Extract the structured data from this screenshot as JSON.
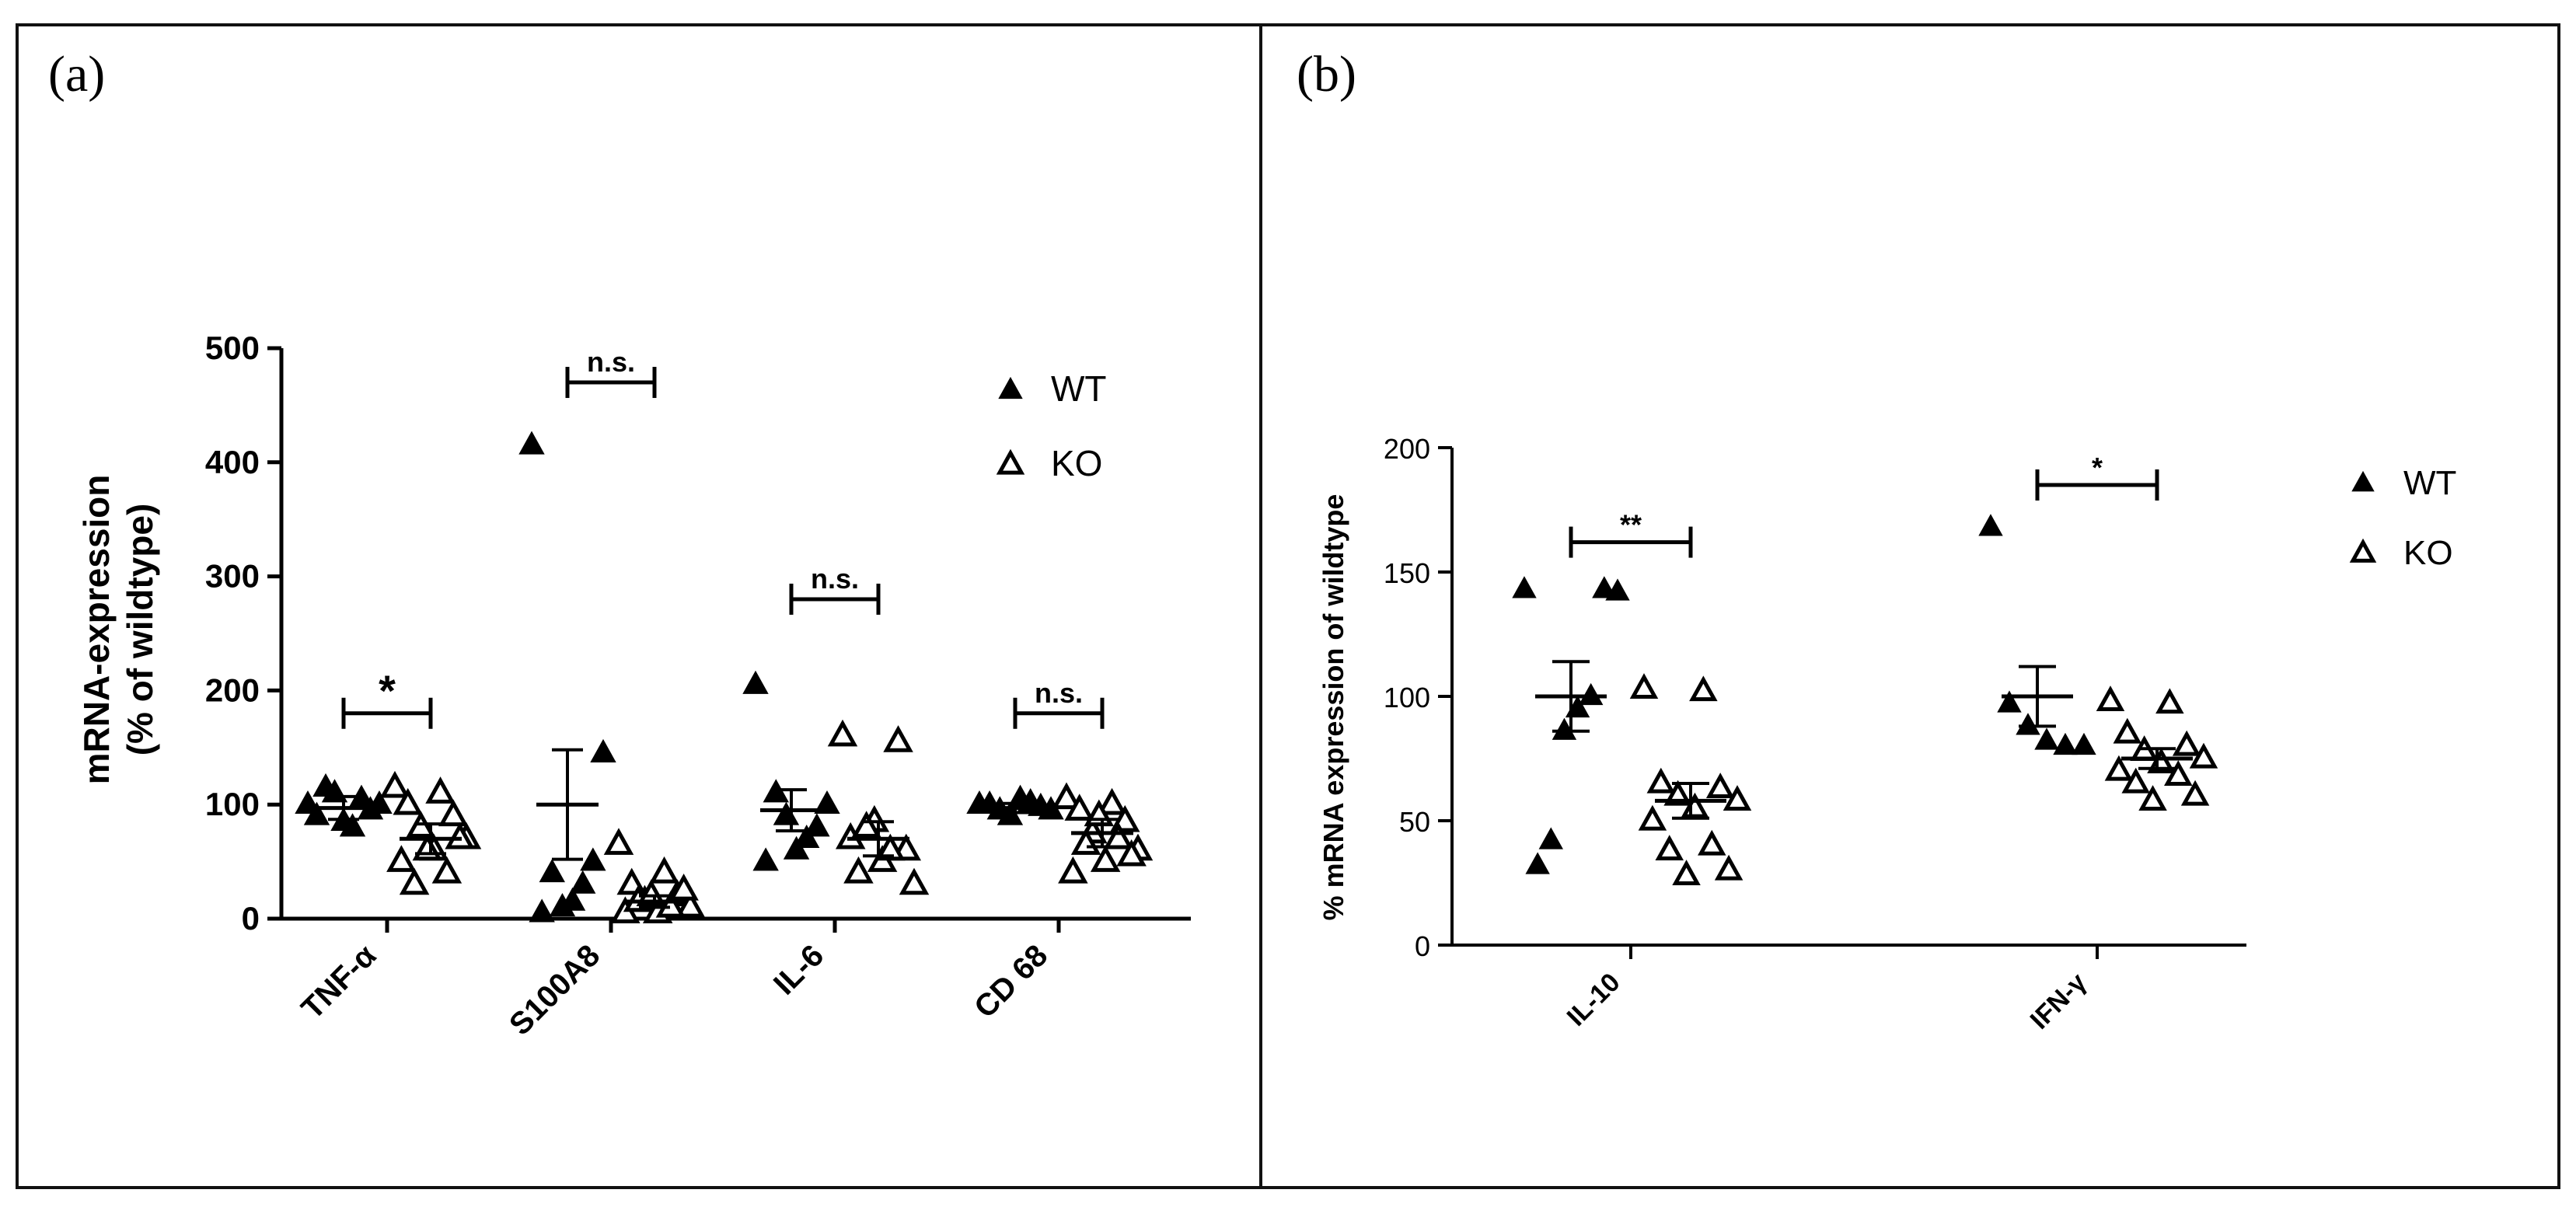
{
  "chart_data": [
    {
      "panel": "(a)",
      "type": "scatter",
      "title": "",
      "xlabel": "",
      "ylabel_line1": "mRNA-expression",
      "ylabel_line2": "(% of wildtype)",
      "ylim": [
        0,
        500
      ],
      "yticks": [
        0,
        100,
        200,
        300,
        400,
        500
      ],
      "categories": [
        "TNF-α",
        "S100A8",
        "IL-6",
        "CD 68"
      ],
      "legend": [
        {
          "name": "WT",
          "marker": "filled-triangle"
        },
        {
          "name": "KO",
          "marker": "open-triangle"
        }
      ],
      "legend_position": "top-right",
      "series": [
        {
          "name": "WT",
          "marker": "filled-triangle",
          "points": [
            [
              100,
              95,
              80,
              110,
              90,
              100,
              105,
              85,
              115
            ],
            [
              415,
              145,
              50,
              30,
              15,
              10,
              40,
              5
            ],
            [
              205,
              100,
              80,
              70,
              60,
              90,
              110,
              50
            ],
            [
              100,
              95,
              98,
              102,
              105,
              90,
              95,
              100
            ]
          ],
          "mean": [
            97,
            100,
            95,
            97
          ],
          "error": [
            10,
            48,
            18,
            4
          ]
        },
        {
          "name": "KO",
          "marker": "open-triangle",
          "points": [
            [
              115,
              110,
              100,
              90,
              80,
              70,
              60,
              50,
              40,
              30,
              70,
              60
            ],
            [
              65,
              40,
              30,
              20,
              15,
              10,
              5,
              5,
              10,
              15,
              25,
              20
            ],
            [
              160,
              155,
              85,
              70,
              60,
              50,
              40,
              30,
              60,
              80
            ],
            [
              105,
              100,
              95,
              85,
              75,
              60,
              50,
              40,
              70,
              65,
              55,
              90
            ]
          ],
          "mean": [
            70,
            15,
            70,
            75
          ],
          "error": [
            13,
            5,
            15,
            12
          ]
        }
      ],
      "significance": [
        {
          "from": 0,
          "label": "*",
          "y": 180
        },
        {
          "from": 1,
          "label": "n.s.",
          "y": 470
        },
        {
          "from": 2,
          "label": "n.s.",
          "y": 280
        },
        {
          "from": 3,
          "label": "n.s.",
          "y": 180
        }
      ]
    },
    {
      "panel": "(b)",
      "type": "scatter",
      "title": "",
      "xlabel": "",
      "ylabel": "% mRNA expression of wildtype",
      "ylim": [
        0,
        200
      ],
      "yticks": [
        0,
        50,
        100,
        150,
        200
      ],
      "categories": [
        "IL-10",
        "IFN-γ"
      ],
      "legend": [
        {
          "name": "WT",
          "marker": "filled-triangle"
        },
        {
          "name": "KO",
          "marker": "open-triangle"
        }
      ],
      "legend_position": "top-right",
      "series": [
        {
          "name": "WT",
          "marker": "filled-triangle",
          "points": [
            [
              143,
              142,
              143,
              100,
              95,
              86,
              42,
              32
            ],
            [
              168,
              97,
              88,
              82,
              80,
              80
            ]
          ],
          "mean": [
            100,
            100
          ],
          "error": [
            14,
            12
          ]
        },
        {
          "name": "KO",
          "marker": "open-triangle",
          "points": [
            [
              103,
              102,
              65,
              63,
              60,
              58,
              55,
              50,
              40,
              38,
              30,
              28
            ],
            [
              98,
              97,
              85,
              80,
              78,
              75,
              73,
              70,
              68,
              65,
              60,
              58
            ]
          ],
          "mean": [
            58,
            75
          ],
          "error": [
            7,
            4
          ]
        }
      ],
      "significance": [
        {
          "from": 0,
          "label": "**",
          "y": 162
        },
        {
          "from": 1,
          "label": "*",
          "y": 185
        }
      ]
    }
  ]
}
